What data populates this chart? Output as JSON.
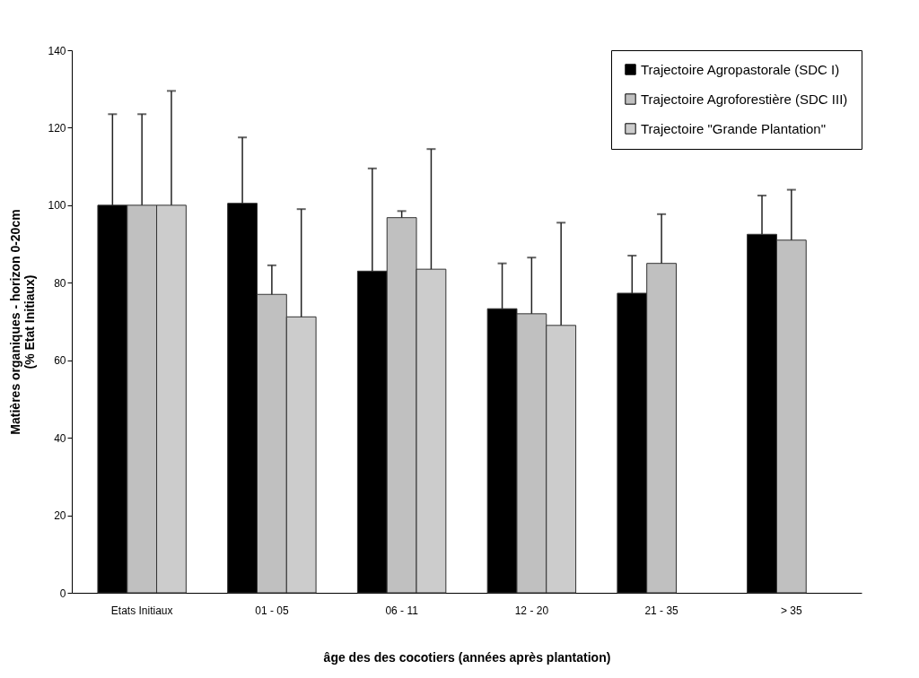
{
  "chart_data": {
    "type": "bar",
    "xlabel": "âge des des cocotiers (années après plantation)",
    "ylabel": "Matières organiques - horizon 0-20cm\n(% Etat Initiaux)",
    "categories": [
      "Etats Initiaux",
      "01 - 05",
      "06 - 11",
      "12 - 20",
      "21 - 35",
      "> 35"
    ],
    "series": [
      {
        "name": "Trajectoire Agropastorale (SDC I)",
        "color": "#000000",
        "values": [
          100,
          100.5,
          83,
          73.3,
          77.3,
          92.5
        ],
        "errors": [
          [
            100,
            123.5
          ],
          [
            100.5,
            117.5
          ],
          [
            83,
            109.5
          ],
          [
            73.3,
            85
          ],
          [
            77.3,
            87
          ],
          [
            92.5,
            102.5
          ]
        ]
      },
      {
        "name": "Trajectoire Agroforestière (SDC III)",
        "color": "#c0c0c0",
        "values": [
          100,
          77,
          96.8,
          72,
          85,
          91
        ],
        "errors": [
          [
            100,
            123.5
          ],
          [
            77,
            84.5
          ],
          [
            96.8,
            98.5
          ],
          [
            72,
            86.5
          ],
          [
            85,
            97.7
          ],
          [
            91,
            104
          ]
        ]
      },
      {
        "name": "Trajectoire \"Grande Plantation\"",
        "color": "#cccccc",
        "values": [
          100,
          71.2,
          83.5,
          69,
          null,
          null
        ],
        "errors": [
          [
            100,
            129.5
          ],
          [
            71.2,
            99
          ],
          [
            83.5,
            114.5
          ],
          [
            69,
            95.5
          ],
          null,
          null
        ]
      }
    ],
    "ylim": [
      0,
      140
    ],
    "yticks": [
      0,
      20,
      40,
      60,
      80,
      100,
      120,
      140
    ],
    "legend": "top right"
  }
}
